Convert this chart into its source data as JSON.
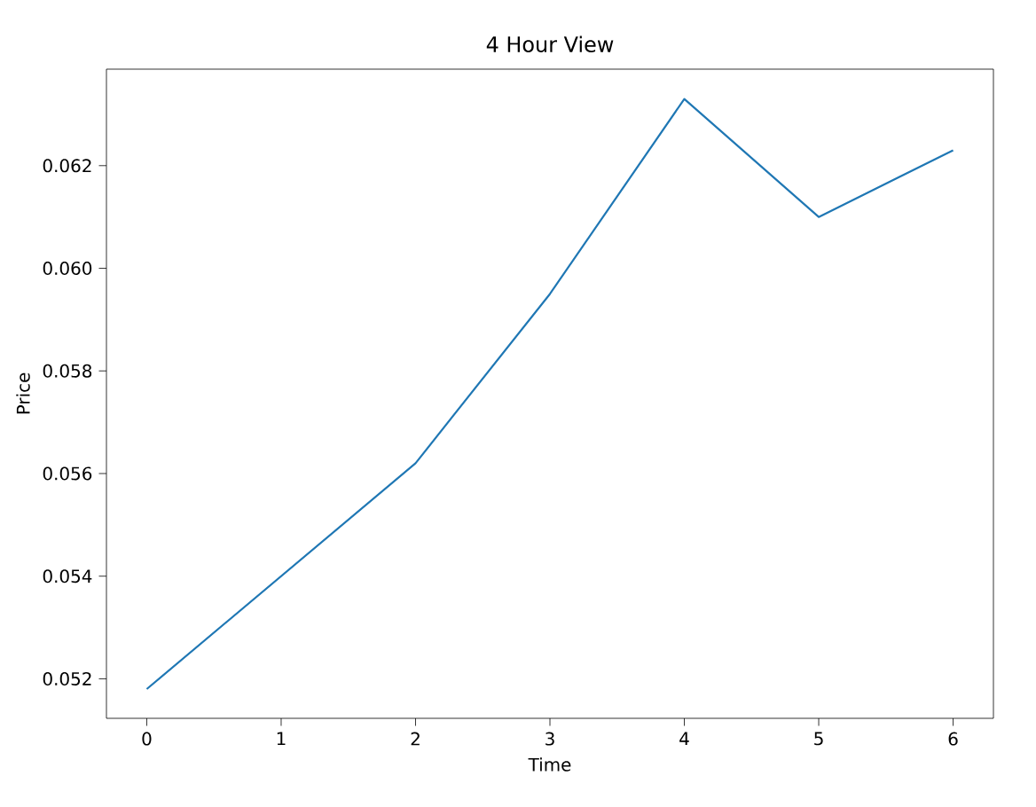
{
  "chart_data": {
    "type": "line",
    "title": "4 Hour View",
    "xlabel": "Time",
    "ylabel": "Price",
    "x": [
      0,
      1,
      2,
      3,
      4,
      5,
      6
    ],
    "series": [
      {
        "color": "#1f77b4",
        "values": [
          0.0518,
          0.054,
          0.0562,
          0.0595,
          0.0633,
          0.061,
          0.0623
        ]
      }
    ],
    "xlim": [
      -0.3,
      6.3
    ],
    "ylim": [
      0.05123,
      0.06388
    ],
    "xticks": [
      0,
      1,
      2,
      3,
      4,
      5,
      6
    ],
    "yticks": [
      0.052,
      0.054,
      0.056,
      0.058,
      {
        "value": 0.06,
        "label": "0.060"
      },
      0.062
    ],
    "grid": false,
    "marker": "none",
    "line_style": "solid"
  }
}
